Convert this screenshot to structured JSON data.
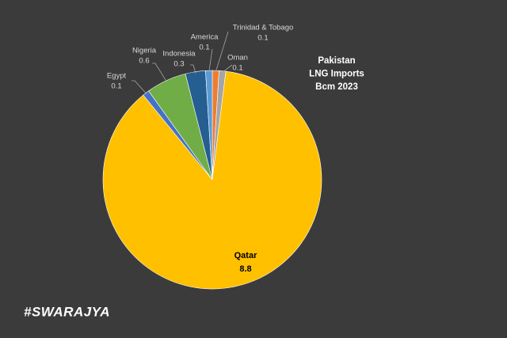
{
  "chart_data": {
    "type": "pie",
    "title": [
      "Pakistan",
      "LNG Imports",
      "Bcm 2023"
    ],
    "categories": [
      "Trinidad & Tobago",
      "Oman",
      "Qatar",
      "Egypt",
      "Nigeria",
      "Indonesia",
      "America"
    ],
    "values": [
      0.1,
      0.1,
      8.8,
      0.1,
      0.6,
      0.3,
      0.1
    ],
    "colors": [
      "#ed7d31",
      "#a5a5a5",
      "#ffc000",
      "#4472c4",
      "#70ad47",
      "#255e91",
      "#5b9bd5"
    ]
  },
  "watermark": "#SWARAJYA"
}
